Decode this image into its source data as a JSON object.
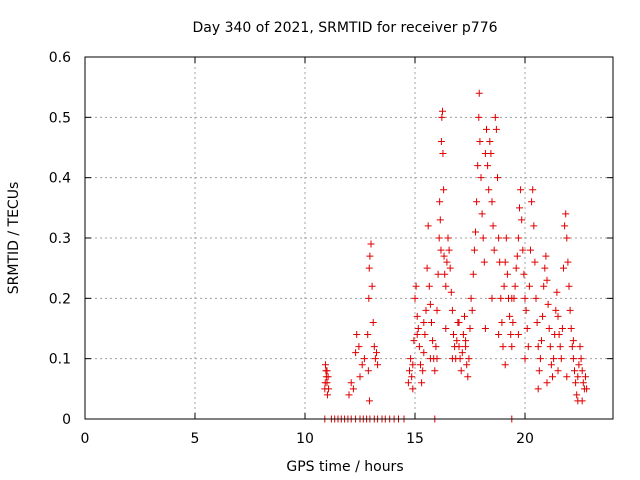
{
  "chart_data": {
    "type": "scatter",
    "title": "Day 340 of 2021, SRMTID for receiver p776",
    "xlabel": "GPS time / hours",
    "ylabel": "SRMTID / TECUs",
    "xlim": [
      0,
      24
    ],
    "ylim": [
      0,
      0.6
    ],
    "xticks": [
      0,
      5,
      10,
      15,
      20
    ],
    "xtick_labels": [
      "0",
      "5",
      "10",
      "15",
      "20"
    ],
    "yticks": [
      0,
      0.1,
      0.2,
      0.3,
      0.4,
      0.5,
      0.6
    ],
    "ytick_labels": [
      "0",
      "0.1",
      "0.2",
      "0.3",
      "0.4",
      "0.5",
      "0.6"
    ],
    "grid": true,
    "marker": "+",
    "color": "#e00000",
    "series": [
      {
        "name": "SRMTID",
        "points": [
          [
            10.9,
            0.05
          ],
          [
            10.92,
            0.06
          ],
          [
            10.95,
            0.08
          ],
          [
            10.97,
            0.07
          ],
          [
            11.0,
            0.06
          ],
          [
            11.02,
            0.04
          ],
          [
            11.05,
            0.07
          ],
          [
            11.07,
            0.05
          ],
          [
            10.93,
            0.09
          ],
          [
            11.0,
            0.08
          ],
          [
            12.0,
            0.04
          ],
          [
            12.1,
            0.06
          ],
          [
            12.2,
            0.05
          ],
          [
            12.3,
            0.11
          ],
          [
            12.35,
            0.14
          ],
          [
            12.45,
            0.12
          ],
          [
            12.5,
            0.07
          ],
          [
            12.6,
            0.09
          ],
          [
            12.7,
            0.1
          ],
          [
            12.85,
            0.14
          ],
          [
            12.9,
            0.2
          ],
          [
            12.92,
            0.25
          ],
          [
            12.95,
            0.27
          ],
          [
            13.0,
            0.29
          ],
          [
            13.05,
            0.22
          ],
          [
            13.1,
            0.16
          ],
          [
            13.15,
            0.12
          ],
          [
            13.2,
            0.1
          ],
          [
            13.25,
            0.11
          ],
          [
            12.88,
            0.08
          ],
          [
            12.93,
            0.03
          ],
          [
            13.3,
            0.09
          ],
          [
            14.7,
            0.06
          ],
          [
            14.75,
            0.08
          ],
          [
            14.8,
            0.1
          ],
          [
            14.85,
            0.07
          ],
          [
            14.9,
            0.05
          ],
          [
            14.95,
            0.13
          ],
          [
            15.0,
            0.2
          ],
          [
            15.05,
            0.22
          ],
          [
            15.1,
            0.17
          ],
          [
            15.15,
            0.15
          ],
          [
            15.2,
            0.12
          ],
          [
            15.25,
            0.09
          ],
          [
            15.3,
            0.06
          ],
          [
            15.35,
            0.08
          ],
          [
            15.4,
            0.11
          ],
          [
            15.45,
            0.14
          ],
          [
            15.5,
            0.18
          ],
          [
            15.55,
            0.25
          ],
          [
            15.6,
            0.32
          ],
          [
            15.65,
            0.22
          ],
          [
            15.7,
            0.19
          ],
          [
            15.75,
            0.16
          ],
          [
            15.8,
            0.13
          ],
          [
            15.85,
            0.1
          ],
          [
            15.9,
            0.08
          ],
          [
            15.95,
            0.12
          ],
          [
            16.0,
            0.18
          ],
          [
            16.05,
            0.24
          ],
          [
            16.1,
            0.3
          ],
          [
            16.12,
            0.36
          ],
          [
            16.15,
            0.33
          ],
          [
            16.18,
            0.28
          ],
          [
            16.2,
            0.46
          ],
          [
            16.22,
            0.5
          ],
          [
            16.25,
            0.51
          ],
          [
            16.27,
            0.44
          ],
          [
            16.3,
            0.38
          ],
          [
            16.32,
            0.27
          ],
          [
            16.35,
            0.24
          ],
          [
            16.4,
            0.22
          ],
          [
            16.45,
            0.26
          ],
          [
            16.5,
            0.3
          ],
          [
            16.55,
            0.28
          ],
          [
            16.6,
            0.25
          ],
          [
            16.65,
            0.21
          ],
          [
            16.7,
            0.18
          ],
          [
            16.75,
            0.14
          ],
          [
            16.8,
            0.12
          ],
          [
            16.85,
            0.1
          ],
          [
            16.9,
            0.13
          ],
          [
            16.95,
            0.16
          ],
          [
            17.0,
            0.12
          ],
          [
            17.05,
            0.1
          ],
          [
            17.1,
            0.08
          ],
          [
            17.15,
            0.11
          ],
          [
            17.2,
            0.14
          ],
          [
            17.25,
            0.17
          ],
          [
            17.3,
            0.13
          ],
          [
            17.35,
            0.09
          ],
          [
            17.4,
            0.07
          ],
          [
            17.45,
            0.1
          ],
          [
            17.5,
            0.15
          ],
          [
            17.55,
            0.2
          ],
          [
            17.6,
            0.18
          ],
          [
            17.65,
            0.24
          ],
          [
            17.7,
            0.28
          ],
          [
            17.75,
            0.31
          ],
          [
            17.8,
            0.36
          ],
          [
            17.85,
            0.42
          ],
          [
            17.9,
            0.5
          ],
          [
            17.92,
            0.54
          ],
          [
            17.95,
            0.46
          ],
          [
            18.0,
            0.4
          ],
          [
            18.05,
            0.34
          ],
          [
            18.1,
            0.3
          ],
          [
            18.15,
            0.26
          ],
          [
            18.2,
            0.44
          ],
          [
            18.25,
            0.48
          ],
          [
            18.3,
            0.42
          ],
          [
            18.35,
            0.38
          ],
          [
            18.4,
            0.46
          ],
          [
            18.45,
            0.44
          ],
          [
            18.5,
            0.36
          ],
          [
            18.55,
            0.32
          ],
          [
            18.6,
            0.28
          ],
          [
            18.65,
            0.5
          ],
          [
            18.7,
            0.48
          ],
          [
            18.75,
            0.4
          ],
          [
            18.8,
            0.3
          ],
          [
            18.85,
            0.26
          ],
          [
            18.9,
            0.2
          ],
          [
            18.95,
            0.16
          ],
          [
            19.0,
            0.12
          ],
          [
            19.05,
            0.22
          ],
          [
            19.1,
            0.26
          ],
          [
            19.15,
            0.3
          ],
          [
            19.2,
            0.24
          ],
          [
            19.25,
            0.2
          ],
          [
            19.3,
            0.17
          ],
          [
            19.35,
            0.14
          ],
          [
            19.4,
            0.12
          ],
          [
            19.45,
            0.16
          ],
          [
            19.5,
            0.2
          ],
          [
            19.55,
            0.22
          ],
          [
            19.6,
            0.25
          ],
          [
            19.65,
            0.27
          ],
          [
            19.7,
            0.3
          ],
          [
            19.75,
            0.35
          ],
          [
            19.8,
            0.38
          ],
          [
            19.85,
            0.33
          ],
          [
            19.9,
            0.28
          ],
          [
            19.95,
            0.24
          ],
          [
            20.0,
            0.2
          ],
          [
            20.05,
            0.18
          ],
          [
            20.1,
            0.15
          ],
          [
            20.15,
            0.12
          ],
          [
            20.2,
            0.22
          ],
          [
            20.25,
            0.28
          ],
          [
            20.3,
            0.36
          ],
          [
            20.35,
            0.38
          ],
          [
            20.4,
            0.32
          ],
          [
            20.45,
            0.26
          ],
          [
            20.5,
            0.2
          ],
          [
            20.55,
            0.16
          ],
          [
            20.6,
            0.12
          ],
          [
            20.65,
            0.08
          ],
          [
            20.7,
            0.1
          ],
          [
            20.75,
            0.13
          ],
          [
            20.8,
            0.17
          ],
          [
            20.85,
            0.22
          ],
          [
            20.9,
            0.25
          ],
          [
            20.95,
            0.27
          ],
          [
            21.0,
            0.23
          ],
          [
            21.05,
            0.19
          ],
          [
            21.1,
            0.15
          ],
          [
            21.15,
            0.12
          ],
          [
            21.2,
            0.09
          ],
          [
            21.25,
            0.07
          ],
          [
            21.3,
            0.1
          ],
          [
            21.35,
            0.14
          ],
          [
            21.4,
            0.18
          ],
          [
            21.45,
            0.21
          ],
          [
            21.5,
            0.17
          ],
          [
            21.55,
            0.14
          ],
          [
            21.6,
            0.12
          ],
          [
            21.65,
            0.1
          ],
          [
            21.7,
            0.15
          ],
          [
            21.75,
            0.25
          ],
          [
            21.8,
            0.32
          ],
          [
            21.85,
            0.34
          ],
          [
            21.9,
            0.3
          ],
          [
            21.95,
            0.26
          ],
          [
            22.0,
            0.22
          ],
          [
            22.05,
            0.18
          ],
          [
            22.1,
            0.15
          ],
          [
            22.15,
            0.12
          ],
          [
            22.2,
            0.1
          ],
          [
            22.25,
            0.08
          ],
          [
            22.3,
            0.06
          ],
          [
            22.35,
            0.04
          ],
          [
            22.4,
            0.07
          ],
          [
            22.45,
            0.09
          ],
          [
            22.5,
            0.12
          ],
          [
            22.55,
            0.1
          ],
          [
            22.6,
            0.08
          ],
          [
            22.65,
            0.06
          ],
          [
            22.7,
            0.05
          ],
          [
            22.75,
            0.07
          ],
          [
            22.8,
            0.05
          ],
          [
            22.6,
            0.03
          ],
          [
            22.4,
            0.03
          ],
          [
            22.2,
            0.13
          ],
          [
            21.9,
            0.07
          ],
          [
            21.5,
            0.08
          ],
          [
            21.0,
            0.06
          ],
          [
            20.6,
            0.05
          ],
          [
            17.3,
            0.12
          ],
          [
            17.0,
            0.16
          ],
          [
            16.7,
            0.1
          ],
          [
            16.4,
            0.15
          ],
          [
            16.0,
            0.1
          ],
          [
            15.7,
            0.1
          ],
          [
            15.4,
            0.16
          ],
          [
            15.1,
            0.14
          ],
          [
            14.9,
            0.09
          ],
          [
            18.2,
            0.15
          ],
          [
            18.5,
            0.2
          ],
          [
            18.8,
            0.14
          ],
          [
            19.1,
            0.09
          ],
          [
            19.4,
            0.2
          ],
          [
            19.7,
            0.14
          ],
          [
            20.0,
            0.1
          ],
          [
            10.9,
            0.0
          ],
          [
            11.2,
            0.0
          ],
          [
            11.35,
            0.0
          ],
          [
            11.5,
            0.0
          ],
          [
            11.65,
            0.0
          ],
          [
            11.8,
            0.0
          ],
          [
            11.95,
            0.0
          ],
          [
            12.1,
            0.0
          ],
          [
            12.3,
            0.0
          ],
          [
            12.5,
            0.0
          ],
          [
            12.65,
            0.0
          ],
          [
            12.8,
            0.0
          ],
          [
            12.95,
            0.0
          ],
          [
            13.15,
            0.0
          ],
          [
            13.3,
            0.0
          ],
          [
            13.5,
            0.0
          ],
          [
            13.65,
            0.0
          ],
          [
            13.85,
            0.0
          ],
          [
            14.05,
            0.0
          ],
          [
            14.25,
            0.0
          ],
          [
            14.5,
            0.0
          ],
          [
            15.9,
            0.0
          ],
          [
            19.4,
            0.0
          ]
        ]
      }
    ]
  }
}
